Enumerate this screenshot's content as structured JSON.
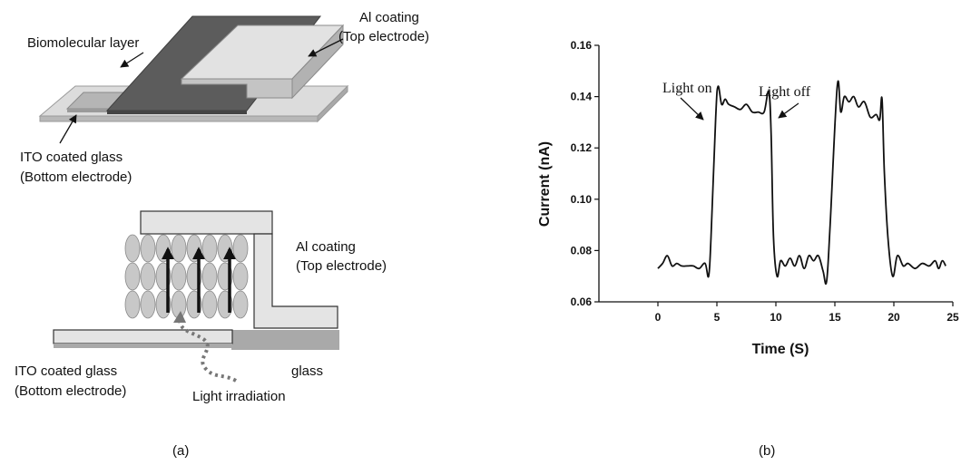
{
  "panel_a": {
    "top_view": {
      "label_biomolecular": "Biomolecular layer",
      "label_al_1": "Al coating",
      "label_al_2": "(Top electrode)",
      "label_ito_1": "ITO coated glass",
      "label_ito_2": "(Bottom electrode)"
    },
    "cross_section": {
      "label_al_1": "Al coating",
      "label_al_2": "(Top electrode)",
      "label_ito_1": "ITO coated glass",
      "label_ito_2": "(Bottom electrode)",
      "label_glass": "glass",
      "label_light": "Light irradiation"
    },
    "caption": "(a)",
    "colors": {
      "light_gray": "#d0d0d0",
      "mid_gray": "#a9a9a9",
      "dark_gray": "#5c5c5c",
      "ellipse": "#c8c8c8"
    }
  },
  "panel_b": {
    "caption": "(b)",
    "annotation_on": "Light on",
    "annotation_off": "Light off"
  },
  "chart_data": {
    "type": "line",
    "xlabel": "Time (S)",
    "ylabel": "Current (nA)",
    "xlim": [
      -5,
      25
    ],
    "ylim": [
      0.06,
      0.16
    ],
    "x_ticks": [
      0,
      5,
      10,
      15,
      20,
      25
    ],
    "y_ticks": [
      0.06,
      0.08,
      0.1,
      0.12,
      0.14,
      0.16
    ],
    "x_tick_labels": [
      "0",
      "5",
      "10",
      "15",
      "20",
      "25"
    ],
    "y_tick_labels": [
      "0.06",
      "0.08",
      "0.10",
      "0.12",
      "0.14",
      "0.16"
    ],
    "grid": false,
    "series": [
      {
        "x": [
          0,
          0.4,
          0.8,
          1.2,
          1.6,
          2.0,
          2.5,
          3.0,
          3.5,
          4.0,
          4.3,
          4.5,
          4.9,
          5.1,
          5.4,
          5.7,
          6.0,
          6.5,
          7.0,
          7.5,
          8.0,
          8.5,
          9.0,
          9.4,
          9.6,
          9.8,
          10.1,
          10.4,
          10.8,
          11.2,
          11.6,
          12.0,
          12.4,
          12.8,
          13.2,
          13.6,
          14.0,
          14.3,
          14.6,
          15.2,
          15.5,
          15.8,
          16.2,
          16.6,
          17.0,
          17.5,
          18.0,
          18.5,
          18.8,
          19.0,
          19.2,
          19.5,
          19.9,
          20.3,
          20.8,
          21.2,
          21.8,
          22.4,
          23.0,
          23.5,
          23.8,
          24.1,
          24.4
        ],
        "y": [
          0.073,
          0.075,
          0.078,
          0.074,
          0.075,
          0.074,
          0.074,
          0.074,
          0.073,
          0.075,
          0.07,
          0.085,
          0.132,
          0.144,
          0.137,
          0.139,
          0.137,
          0.136,
          0.135,
          0.137,
          0.134,
          0.134,
          0.134,
          0.142,
          0.125,
          0.085,
          0.07,
          0.076,
          0.074,
          0.077,
          0.074,
          0.078,
          0.073,
          0.078,
          0.076,
          0.078,
          0.072,
          0.068,
          0.09,
          0.144,
          0.134,
          0.14,
          0.138,
          0.14,
          0.136,
          0.138,
          0.132,
          0.133,
          0.131,
          0.139,
          0.11,
          0.085,
          0.07,
          0.078,
          0.074,
          0.075,
          0.073,
          0.075,
          0.074,
          0.076,
          0.073,
          0.076,
          0.074
        ]
      }
    ]
  }
}
